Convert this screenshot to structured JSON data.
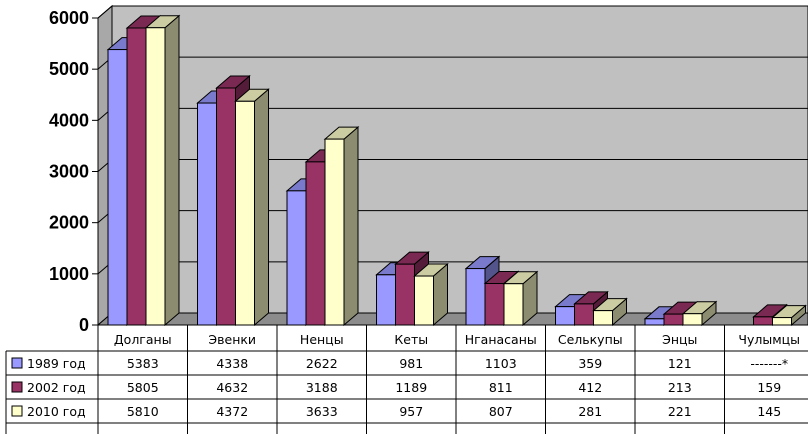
{
  "chart_data": {
    "type": "bar",
    "style": "3d-clustered",
    "categories": [
      "Долганы",
      "Эвенки",
      "Ненцы",
      "Кеты",
      "Нганасаны",
      "Селькупы",
      "Энцы",
      "Чулымцы"
    ],
    "series": [
      {
        "name": "1989 год",
        "color": "#9999ff",
        "values": [
          5383,
          4338,
          2622,
          981,
          1103,
          359,
          121,
          null
        ],
        "labels": [
          "5383",
          "4338",
          "2622",
          "981",
          "1103",
          "359",
          "121",
          "-------*"
        ]
      },
      {
        "name": "2002 год",
        "color": "#993366",
        "values": [
          5805,
          4632,
          3188,
          1189,
          811,
          412,
          213,
          159
        ],
        "labels": [
          "5805",
          "4632",
          "3188",
          "1189",
          "811",
          "412",
          "213",
          "159"
        ]
      },
      {
        "name": "2010 год",
        "color": "#ffffcc",
        "values": [
          5810,
          4372,
          3633,
          957,
          807,
          281,
          221,
          145
        ],
        "labels": [
          "5810",
          "4372",
          "3633",
          "957",
          "807",
          "281",
          "221",
          "145"
        ]
      }
    ],
    "y_ticks": [
      "0",
      "1000",
      "2000",
      "3000",
      "4000",
      "5000",
      "6000"
    ],
    "ylim": [
      0,
      6000
    ],
    "grid": true,
    "wall_color": "#c0c0c0",
    "legend": "data-table-below"
  }
}
